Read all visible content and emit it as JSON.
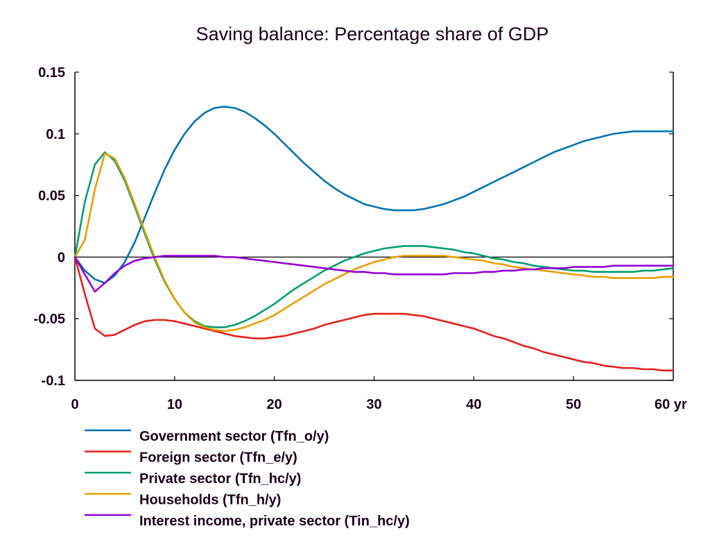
{
  "chart_data": {
    "type": "line",
    "title": "Saving balance: Percentage share of GDP",
    "xlabel": "yr",
    "ylabel": "",
    "xlim": [
      0,
      60
    ],
    "ylim": [
      -0.1,
      0.15
    ],
    "x_ticks": [
      0,
      10,
      20,
      30,
      40,
      50,
      60
    ],
    "x_tick_labels": [
      "0",
      "10",
      "20",
      "30",
      "40",
      "50",
      "60 yr"
    ],
    "y_ticks": [
      0.15,
      0.1,
      0.05,
      0,
      -0.05,
      -0.1
    ],
    "y_tick_labels": [
      "0.15",
      "0.1",
      "0.05",
      "0",
      "-0.05",
      "-0.1"
    ],
    "grid": false,
    "zero_line": true,
    "legend_position": "bottom",
    "x": [
      0,
      1,
      2,
      3,
      4,
      5,
      6,
      7,
      8,
      9,
      10,
      11,
      12,
      13,
      14,
      15,
      16,
      17,
      18,
      19,
      20,
      21,
      22,
      23,
      24,
      25,
      26,
      27,
      28,
      29,
      30,
      31,
      32,
      33,
      34,
      35,
      36,
      37,
      38,
      39,
      40,
      41,
      42,
      43,
      44,
      45,
      46,
      47,
      48,
      49,
      50,
      51,
      52,
      53,
      54,
      55,
      56,
      57,
      58,
      59,
      60
    ],
    "series": [
      {
        "name": "Government sector (Tfn_o/y)",
        "color": "#0072b2",
        "values": [
          0,
          -0.011,
          -0.018,
          -0.021,
          -0.015,
          -0.004,
          0.012,
          0.032,
          0.052,
          0.071,
          0.087,
          0.1,
          0.11,
          0.117,
          0.121,
          0.122,
          0.121,
          0.118,
          0.113,
          0.107,
          0.1,
          0.092,
          0.084,
          0.076,
          0.069,
          0.062,
          0.056,
          0.051,
          0.047,
          0.043,
          0.041,
          0.039,
          0.038,
          0.038,
          0.038,
          0.039,
          0.041,
          0.043,
          0.046,
          0.049,
          0.053,
          0.057,
          0.061,
          0.065,
          0.069,
          0.073,
          0.077,
          0.081,
          0.085,
          0.088,
          0.091,
          0.094,
          0.096,
          0.098,
          0.1,
          0.101,
          0.102,
          0.102,
          0.102,
          0.102,
          0.102
        ]
      },
      {
        "name": "Foreign sector (Tfn_e/y)",
        "color": "#e5211a",
        "values": [
          0,
          -0.03,
          -0.058,
          -0.064,
          -0.063,
          -0.059,
          -0.055,
          -0.052,
          -0.051,
          -0.051,
          -0.052,
          -0.054,
          -0.056,
          -0.058,
          -0.06,
          -0.062,
          -0.064,
          -0.065,
          -0.066,
          -0.066,
          -0.065,
          -0.064,
          -0.062,
          -0.06,
          -0.058,
          -0.055,
          -0.053,
          -0.051,
          -0.049,
          -0.047,
          -0.046,
          -0.046,
          -0.046,
          -0.046,
          -0.047,
          -0.048,
          -0.05,
          -0.052,
          -0.054,
          -0.056,
          -0.058,
          -0.061,
          -0.064,
          -0.066,
          -0.069,
          -0.072,
          -0.074,
          -0.077,
          -0.079,
          -0.081,
          -0.083,
          -0.085,
          -0.086,
          -0.088,
          -0.089,
          -0.09,
          -0.09,
          -0.091,
          -0.091,
          -0.092,
          -0.092
        ]
      },
      {
        "name": "Private sector (Tfn_hc/y)",
        "color": "#009e73",
        "values": [
          0,
          0.045,
          0.075,
          0.085,
          0.078,
          0.062,
          0.041,
          0.019,
          -0.002,
          -0.02,
          -0.034,
          -0.045,
          -0.052,
          -0.056,
          -0.057,
          -0.057,
          -0.055,
          -0.052,
          -0.048,
          -0.043,
          -0.038,
          -0.032,
          -0.026,
          -0.021,
          -0.016,
          -0.011,
          -0.007,
          -0.003,
          0,
          0.003,
          0.005,
          0.007,
          0.008,
          0.009,
          0.009,
          0.009,
          0.008,
          0.007,
          0.006,
          0.004,
          0.003,
          0.001,
          -0.001,
          -0.002,
          -0.004,
          -0.005,
          -0.007,
          -0.008,
          -0.009,
          -0.01,
          -0.011,
          -0.011,
          -0.012,
          -0.012,
          -0.012,
          -0.012,
          -0.012,
          -0.011,
          -0.011,
          -0.01,
          -0.009
        ]
      },
      {
        "name": "Households (Tfn_h/y)",
        "color": "#e69f00",
        "values": [
          0,
          0.014,
          0.055,
          0.084,
          0.08,
          0.064,
          0.043,
          0.021,
          0,
          -0.019,
          -0.034,
          -0.045,
          -0.053,
          -0.057,
          -0.059,
          -0.06,
          -0.059,
          -0.057,
          -0.054,
          -0.051,
          -0.047,
          -0.042,
          -0.037,
          -0.032,
          -0.027,
          -0.022,
          -0.018,
          -0.014,
          -0.01,
          -0.007,
          -0.004,
          -0.002,
          0,
          0.001,
          0.001,
          0.001,
          0.001,
          0.001,
          0,
          -0.001,
          -0.002,
          -0.003,
          -0.005,
          -0.006,
          -0.008,
          -0.009,
          -0.01,
          -0.011,
          -0.012,
          -0.013,
          -0.014,
          -0.015,
          -0.016,
          -0.016,
          -0.017,
          -0.017,
          -0.017,
          -0.017,
          -0.017,
          -0.016,
          -0.016
        ]
      },
      {
        "name": "Interest income, private sector (Tin_hc/y)",
        "color": "#9400d3",
        "values": [
          0,
          -0.014,
          -0.028,
          -0.021,
          -0.013,
          -0.007,
          -0.003,
          -0.001,
          0,
          0.001,
          0.001,
          0.001,
          0.001,
          0.001,
          0.001,
          0,
          0,
          -0.001,
          -0.002,
          -0.003,
          -0.004,
          -0.005,
          -0.006,
          -0.007,
          -0.008,
          -0.009,
          -0.01,
          -0.011,
          -0.012,
          -0.012,
          -0.013,
          -0.013,
          -0.014,
          -0.014,
          -0.014,
          -0.014,
          -0.014,
          -0.014,
          -0.013,
          -0.013,
          -0.013,
          -0.012,
          -0.012,
          -0.011,
          -0.011,
          -0.01,
          -0.01,
          -0.009,
          -0.009,
          -0.009,
          -0.008,
          -0.008,
          -0.008,
          -0.008,
          -0.007,
          -0.007,
          -0.007,
          -0.007,
          -0.007,
          -0.007,
          -0.007
        ]
      }
    ]
  }
}
